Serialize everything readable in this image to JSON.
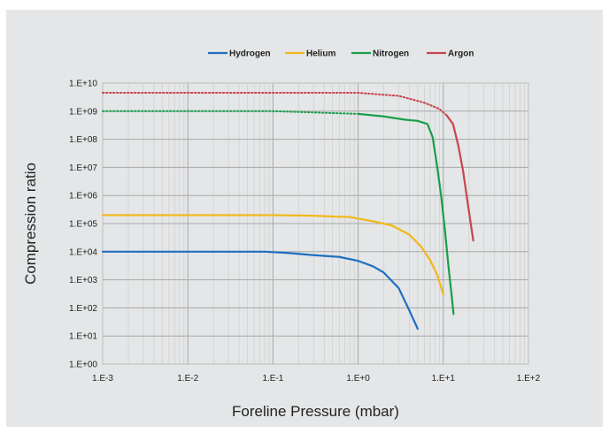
{
  "chart_data": {
    "type": "line",
    "xlabel": "Foreline Pressure (mbar)",
    "ylabel": "Compression ratio",
    "x_scale": "log",
    "y_scale": "log",
    "xlim": [
      0.001,
      100
    ],
    "ylim": [
      1,
      10000000000
    ],
    "x_tick_labels": [
      "1.E-3",
      "1.E-2",
      "1.E-1",
      "1.E+0",
      "1.E+1",
      "1.E+2"
    ],
    "y_tick_labels": [
      "1.E+00",
      "1.E+01",
      "1.E+02",
      "1.E+03",
      "1.E+04",
      "1.E+05",
      "1.E+06",
      "1.E+07",
      "1.E+08",
      "1.E+09",
      "1.E+10"
    ],
    "grid": true,
    "legend_position": "top",
    "series": [
      {
        "name": "Hydrogen",
        "color": "#1f6fc0",
        "segments": [
          {
            "style": "solid",
            "points": [
              [
                0.001,
                10000
              ],
              [
                0.01,
                10000
              ],
              [
                0.08,
                10000
              ],
              [
                0.15,
                9000
              ],
              [
                0.3,
                7500
              ],
              [
                0.6,
                6500
              ],
              [
                1.0,
                4700
              ],
              [
                1.5,
                3000
              ],
              [
                2.0,
                1800
              ],
              [
                3.0,
                500
              ],
              [
                4.0,
                80
              ],
              [
                5.0,
                18
              ]
            ]
          }
        ]
      },
      {
        "name": "Helium",
        "color": "#f2b81a",
        "segments": [
          {
            "style": "solid",
            "points": [
              [
                0.001,
                200000
              ],
              [
                0.01,
                200000
              ],
              [
                0.1,
                200000
              ],
              [
                0.3,
                190000
              ],
              [
                0.8,
                170000
              ],
              [
                1.5,
                120000
              ],
              [
                2.5,
                85000
              ],
              [
                4.0,
                40000
              ],
              [
                5.5,
                15000
              ],
              [
                7.0,
                5000
              ],
              [
                8.5,
                1500
              ],
              [
                10.0,
                300
              ]
            ]
          }
        ]
      },
      {
        "name": "Nitrogen",
        "color": "#1a9e4a",
        "segments": [
          {
            "style": "dotted",
            "points": [
              [
                0.001,
                1000000000
              ],
              [
                0.01,
                1000000000
              ],
              [
                0.1,
                1000000000
              ],
              [
                0.3,
                900000000
              ],
              [
                1.0,
                800000000
              ]
            ]
          },
          {
            "style": "solid",
            "points": [
              [
                1.0,
                800000000
              ],
              [
                2.0,
                650000000
              ],
              [
                3.5,
                500000000
              ],
              [
                5.0,
                450000000
              ],
              [
                6.5,
                350000000
              ],
              [
                7.5,
                120000000
              ],
              [
                8.5,
                10000000
              ],
              [
                9.5,
                800000
              ],
              [
                10.5,
                50000
              ],
              [
                11.5,
                3000
              ],
              [
                12.5,
                300
              ],
              [
                13.2,
                60
              ]
            ]
          }
        ]
      },
      {
        "name": "Argon",
        "color": "#c9444e",
        "segments": [
          {
            "style": "dotted",
            "points": [
              [
                0.001,
                4500000000
              ],
              [
                0.01,
                4500000000
              ],
              [
                0.1,
                4500000000
              ],
              [
                1.0,
                4500000000
              ],
              [
                3.0,
                3500000000
              ],
              [
                6.0,
                2000000000
              ],
              [
                9.0,
                1200000000
              ],
              [
                11.0,
                700000000
              ]
            ]
          },
          {
            "style": "solid",
            "points": [
              [
                11.0,
                700000000
              ],
              [
                13.0,
                350000000
              ],
              [
                15.0,
                60000000
              ],
              [
                17.0,
                8000000
              ],
              [
                19.0,
                800000
              ],
              [
                21.0,
                100000
              ],
              [
                22.5,
                25000
              ]
            ]
          }
        ]
      }
    ]
  }
}
